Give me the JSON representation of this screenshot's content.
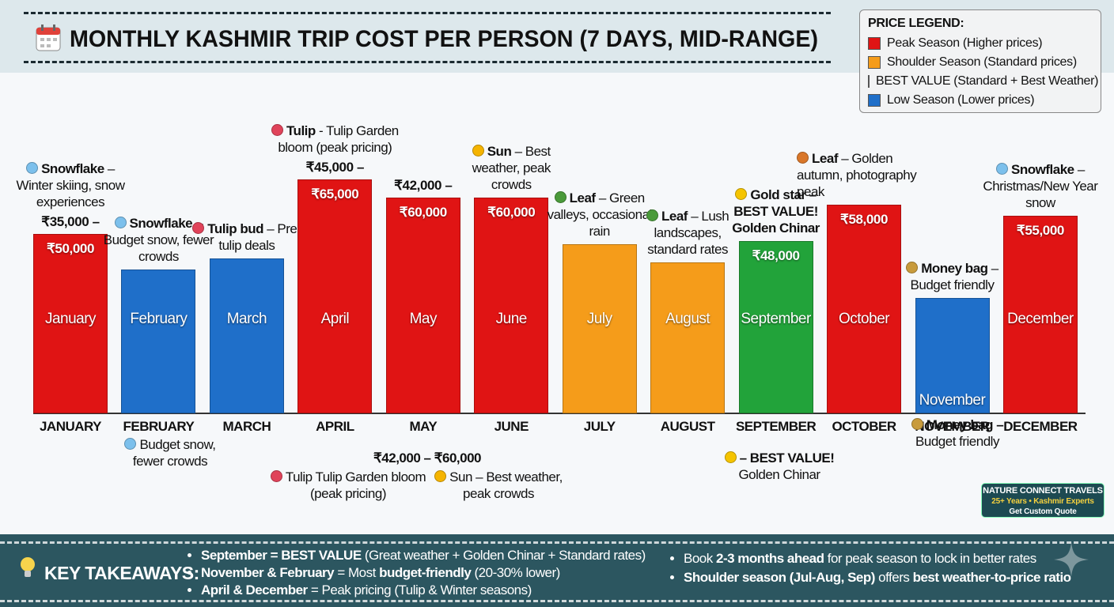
{
  "chart_data": {
    "type": "bar",
    "title": "MONTHLY KASHMIR TRIP COST PER PERSON (7 DAYS, MID-RANGE)",
    "categories": [
      "January",
      "February",
      "March",
      "April",
      "May",
      "June",
      "July",
      "August",
      "September",
      "October",
      "November",
      "December"
    ],
    "axis_labels": [
      "JANUARY",
      "FEBRUARY",
      "MARCH",
      "APRIL",
      "MAY",
      "JUNE",
      "JULY",
      "AUGUST",
      "SEPTEMBER",
      "OCTOBER",
      "NOVEMBER",
      "DECEMBER"
    ],
    "values": [
      50000,
      40000,
      43000,
      65000,
      60000,
      60000,
      47000,
      42000,
      48000,
      58000,
      32000,
      55000
    ],
    "value_labels": [
      "₹50,000",
      null,
      null,
      "₹65,000",
      "₹60,000",
      "₹60,000",
      null,
      null,
      "₹48,000",
      "₹58,000",
      null,
      "₹55,000"
    ],
    "range_labels": [
      "₹35,000 –",
      null,
      null,
      "₹45,000 –",
      "₹42,000 –",
      null,
      null,
      null,
      null,
      null,
      null,
      null
    ],
    "colors": [
      "#e01414",
      "#1f6fc9",
      "#1f6fc9",
      "#e01414",
      "#e01414",
      "#e01414",
      "#f59c1a",
      "#f59c1a",
      "#22a33a",
      "#e01414",
      "#1f6fc9",
      "#e01414"
    ],
    "annotations": [
      {
        "icon": "Snowflake",
        "text": "– Winter skiing, snow experiences",
        "icon_color": "#7cc0ec"
      },
      {
        "icon": "Snowflake",
        "text": "– Budget snow, fewer crowds",
        "icon_color": "#7cc0ec"
      },
      {
        "icon": "Tulip bud",
        "text": "– Pre-tulip deals",
        "icon_color": "#e0435a"
      },
      {
        "icon": "Tulip",
        "text": "- Tulip Garden bloom (peak pricing)",
        "icon_color": "#e0435a"
      },
      null,
      {
        "icon": "Sun",
        "text": "– Best weather, peak crowds",
        "icon_color": "#f5b400"
      },
      {
        "icon": "Leaf",
        "text": "– Green valleys, occasional rain",
        "icon_color": "#4a9a3a"
      },
      {
        "icon": "Leaf",
        "text": "– Lush landscapes, standard rates",
        "icon_color": "#4a9a3a"
      },
      {
        "icon": "Gold star",
        "text": "– BEST VALUE! Golden Chinar",
        "icon_color": "#f5c400",
        "emphasis": true
      },
      {
        "icon": "Leaf",
        "text": "– Golden autumn, photography peak",
        "icon_color": "#d9772a"
      },
      {
        "icon": "Money bag",
        "text": "– Budget friendly",
        "icon_color": "#c89b3c"
      },
      {
        "icon": "Snowflake",
        "text": "– Christmas/New Year snow",
        "icon_color": "#7cc0ec"
      }
    ],
    "notes": [
      {
        "text": "Budget snow, fewer crowds",
        "icon_color": "#7cc0ec"
      },
      {
        "bold": "₹42,000 – ₹60,000"
      },
      {
        "text": "Tulip Tulip Garden bloom (peak pricing)",
        "icon_color": "#e0435a"
      },
      {
        "text": "Sun – Best weather, peak crowds",
        "icon_color": "#f5b400"
      },
      {
        "bold": "– BEST VALUE!",
        "text": "Golden Chinar",
        "icon_color": "#f5c400"
      },
      {
        "bold": "Money bag –",
        "text": "Budget friendly",
        "icon_color": "#c89b3c"
      }
    ],
    "legend": {
      "title": "PRICE LEGEND:",
      "items": [
        {
          "color": "#e01414",
          "name": "Peak Season",
          "note": "(Higher prices)"
        },
        {
          "color": "#f59c1a",
          "name": "Shoulder Season",
          "note": "(Standard prices)"
        },
        {
          "color": "#22a33a",
          "name": "BEST VALUE",
          "note": "(Standard + Best Weather)"
        },
        {
          "color": "#1f6fc9",
          "name": "Low Season",
          "note": "(Lower prices)"
        }
      ]
    }
  },
  "badge": {
    "lines": [
      "NATURE CONNECT TRAVELS",
      "25+ Years • Kashmir Experts",
      "Get Custom Quote"
    ]
  },
  "takeaways": {
    "title": "KEY TAKEAWAYS:",
    "left": [
      [
        {
          "text": "September = BEST VALUE",
          "bold": true
        },
        {
          "text": " (Great weather + Golden Chinar + Standard rates)",
          "bold": false
        }
      ],
      [
        {
          "text": "November & February",
          "bold": true
        },
        {
          "text": " = Most ",
          "bold": false
        },
        {
          "text": "budget-friendly",
          "bold": true
        },
        {
          "text": " (20-30% lower)",
          "bold": false
        }
      ],
      [
        {
          "text": "April & December",
          "bold": true
        },
        {
          "text": " = Peak pricing (Tulip & Winter seasons)",
          "bold": false
        }
      ]
    ],
    "right": [
      [
        {
          "text": "Book ",
          "bold": false
        },
        {
          "text": "2-3 months ahead",
          "bold": true
        },
        {
          "text": " for peak season to lock in better rates",
          "bold": false
        }
      ],
      [
        {
          "text": "Shoulder season (Jul-Aug, Sep)",
          "bold": true
        },
        {
          "text": " offers ",
          "bold": false
        },
        {
          "text": "best weather-to-price ratio",
          "bold": true
        }
      ]
    ]
  }
}
